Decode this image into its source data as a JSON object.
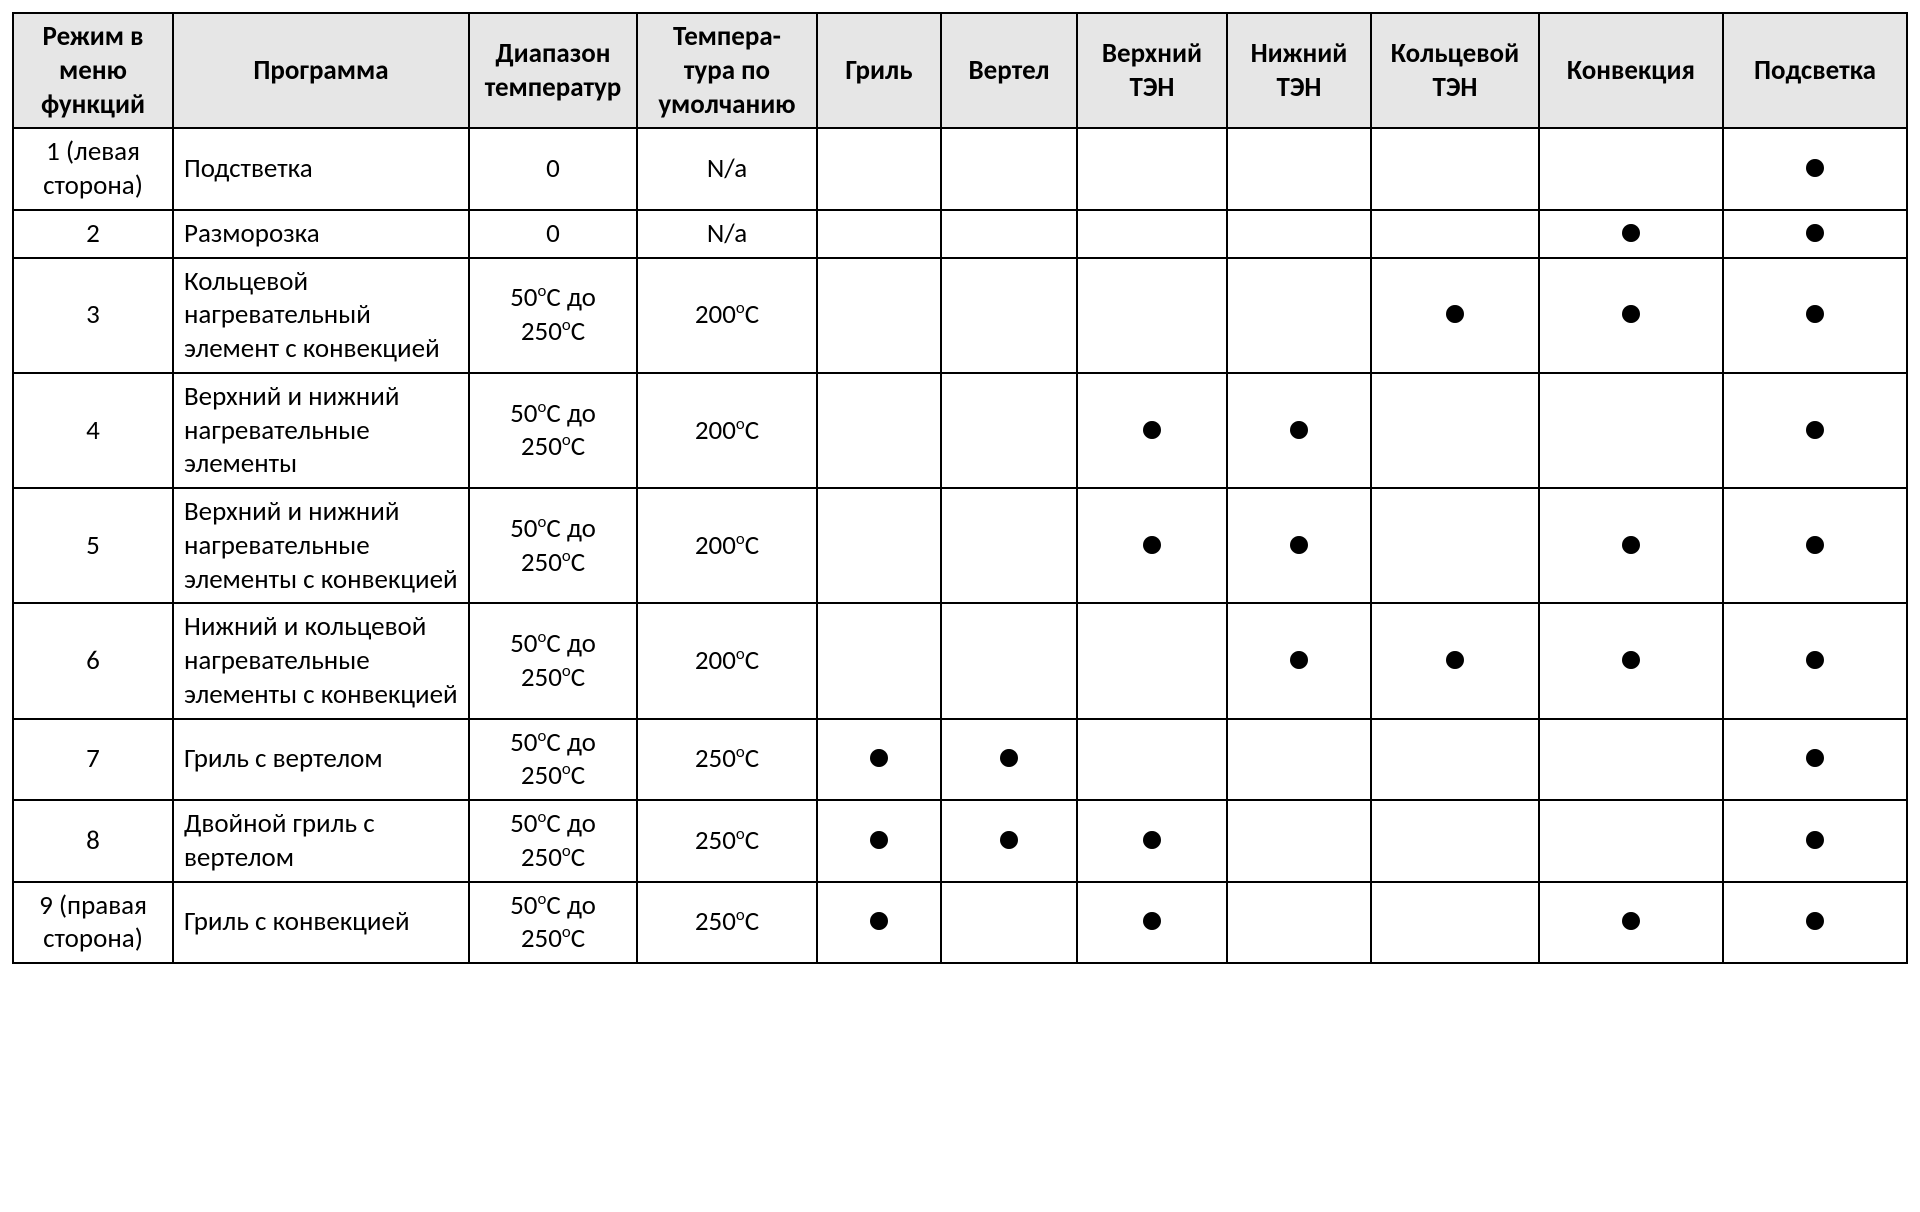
{
  "table": {
    "border_color": "#000000",
    "header_bg": "#e6e6e6",
    "dot_color": "#000000",
    "font_family": "Calibri",
    "header_fontsize_pt": 20,
    "body_fontsize_pt": 20,
    "columns": [
      {
        "key": "mode",
        "label": "Режим в меню функций",
        "align": "center",
        "width_pct": 8.0
      },
      {
        "key": "program",
        "label": "Программа",
        "align": "left",
        "width_pct": 14.8
      },
      {
        "key": "temp_range",
        "label": "Диапазон температур",
        "align": "center",
        "width_pct": 8.4
      },
      {
        "key": "temp_default",
        "label": "Темпера-\nтура по умолчанию",
        "align": "center",
        "width_pct": 9.0
      },
      {
        "key": "grill",
        "label": "Гриль",
        "align": "center",
        "width_pct": 6.2
      },
      {
        "key": "spit",
        "label": "Вертел",
        "align": "center",
        "width_pct": 6.8
      },
      {
        "key": "top_heater",
        "label": "Верхний ТЭН",
        "align": "center",
        "width_pct": 7.5
      },
      {
        "key": "bottom_heater",
        "label": "Нижний ТЭН",
        "align": "center",
        "width_pct": 7.2
      },
      {
        "key": "ring_heater",
        "label": "Кольцевой ТЭН",
        "align": "center",
        "width_pct": 8.4
      },
      {
        "key": "convection",
        "label": "Конвекция",
        "align": "center",
        "width_pct": 9.2
      },
      {
        "key": "light",
        "label": "Подсветка",
        "align": "center",
        "width_pct": 9.2
      }
    ],
    "temp_range_std": {
      "low_c": 50,
      "high_c": 250,
      "text": "50oC до 250oC"
    },
    "rows": [
      {
        "mode": "1 (левая сторона)",
        "program": "Подстветка",
        "temp_range": "0",
        "temp_default": "N/a",
        "grill": false,
        "spit": false,
        "top_heater": false,
        "bottom_heater": false,
        "ring_heater": false,
        "convection": false,
        "light": true
      },
      {
        "mode": "2",
        "program": "Разморозка",
        "temp_range": "0",
        "temp_default": "N/a",
        "grill": false,
        "spit": false,
        "top_heater": false,
        "bottom_heater": false,
        "ring_heater": false,
        "convection": true,
        "light": true
      },
      {
        "mode": "3",
        "program": "Кольцевой нагревательный элемент с конвекцией",
        "temp_range": "50oC до 250oC",
        "temp_default": "200oC",
        "grill": false,
        "spit": false,
        "top_heater": false,
        "bottom_heater": false,
        "ring_heater": true,
        "convection": true,
        "light": true
      },
      {
        "mode": "4",
        "program": "Верхний и нижний нагревательные элементы",
        "temp_range": "50oC до 250oC",
        "temp_default": "200oC",
        "grill": false,
        "spit": false,
        "top_heater": true,
        "bottom_heater": true,
        "ring_heater": false,
        "convection": false,
        "light": true
      },
      {
        "mode": "5",
        "program": "Верхний и нижний нагревательные элементы с конвекцией",
        "temp_range": "50oC до 250oC",
        "temp_default": "200oC",
        "grill": false,
        "spit": false,
        "top_heater": true,
        "bottom_heater": true,
        "ring_heater": false,
        "convection": true,
        "light": true
      },
      {
        "mode": "6",
        "program": "Нижний и кольцевой нагревательные элементы с конвекцией",
        "temp_range": "50oC до 250oC",
        "temp_default": "200oC",
        "grill": false,
        "spit": false,
        "top_heater": false,
        "bottom_heater": true,
        "ring_heater": true,
        "convection": true,
        "light": true
      },
      {
        "mode": "7",
        "program": "Гриль с вертелом",
        "temp_range": "50oC до 250oC",
        "temp_default": "250oC",
        "grill": true,
        "spit": true,
        "top_heater": false,
        "bottom_heater": false,
        "ring_heater": false,
        "convection": false,
        "light": true
      },
      {
        "mode": "8",
        "program": "Двойной гриль с вертелом",
        "temp_range": "50oC до 250oC",
        "temp_default": "250oC",
        "grill": true,
        "spit": true,
        "top_heater": true,
        "bottom_heater": false,
        "ring_heater": false,
        "convection": false,
        "light": true
      },
      {
        "mode": "9 (правая сторона)",
        "program": "Гриль с конвекцией",
        "temp_range": "50oC до 250oC",
        "temp_default": "250oC",
        "grill": true,
        "spit": false,
        "top_heater": true,
        "bottom_heater": false,
        "ring_heater": false,
        "convection": true,
        "light": true
      }
    ]
  }
}
